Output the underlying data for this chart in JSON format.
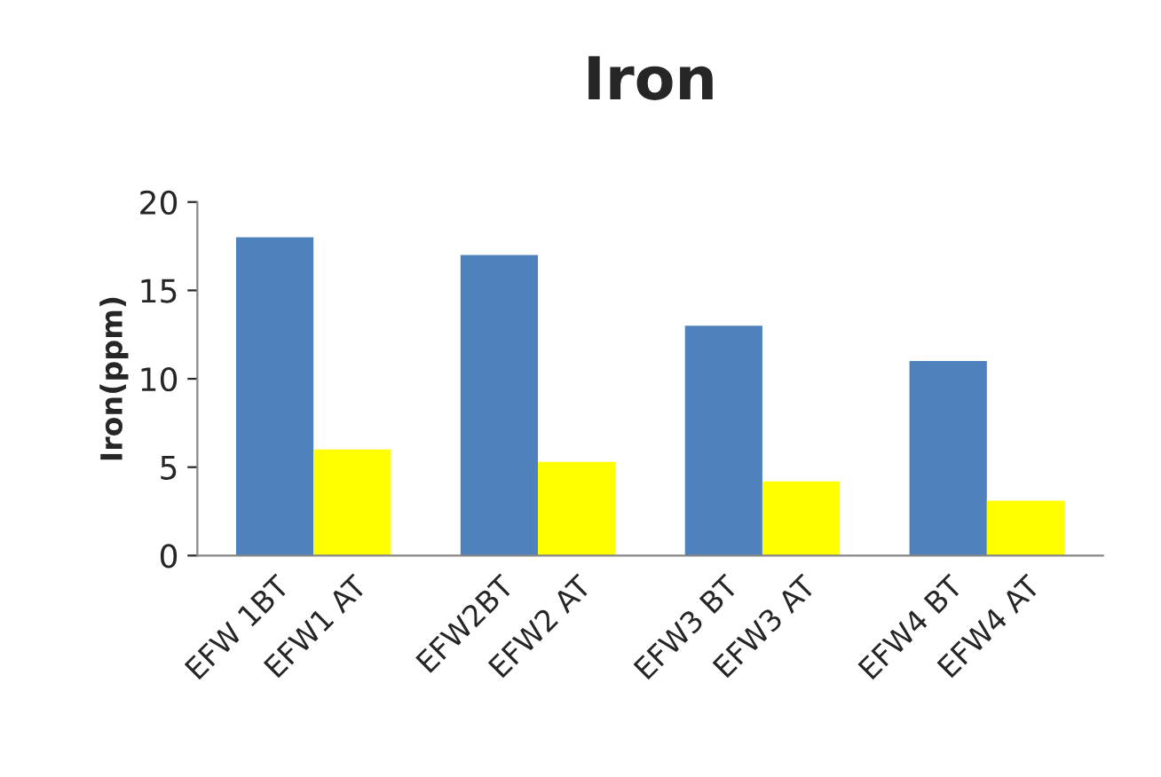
{
  "chart_data": {
    "type": "bar",
    "title": "Iron",
    "ylabel": "Iron(ppm)",
    "categories": [
      "EFW 1BT",
      "EFW1 AT",
      "EFW2BT",
      "EFW2 AT",
      "EFW3 BT",
      "EFW3 AT",
      "EFW4 BT",
      "EFW4 AT"
    ],
    "values": [
      18,
      6,
      17,
      5.3,
      13,
      4.2,
      11,
      3.1
    ],
    "colors": [
      "#4f81bd",
      "#ffff00",
      "#4f81bd",
      "#ffff00",
      "#4f81bd",
      "#ffff00",
      "#4f81bd",
      "#ffff00"
    ],
    "ylim": [
      0,
      20
    ],
    "yticks": [
      0,
      5,
      10,
      15,
      20
    ],
    "grid": false,
    "legend": false
  }
}
